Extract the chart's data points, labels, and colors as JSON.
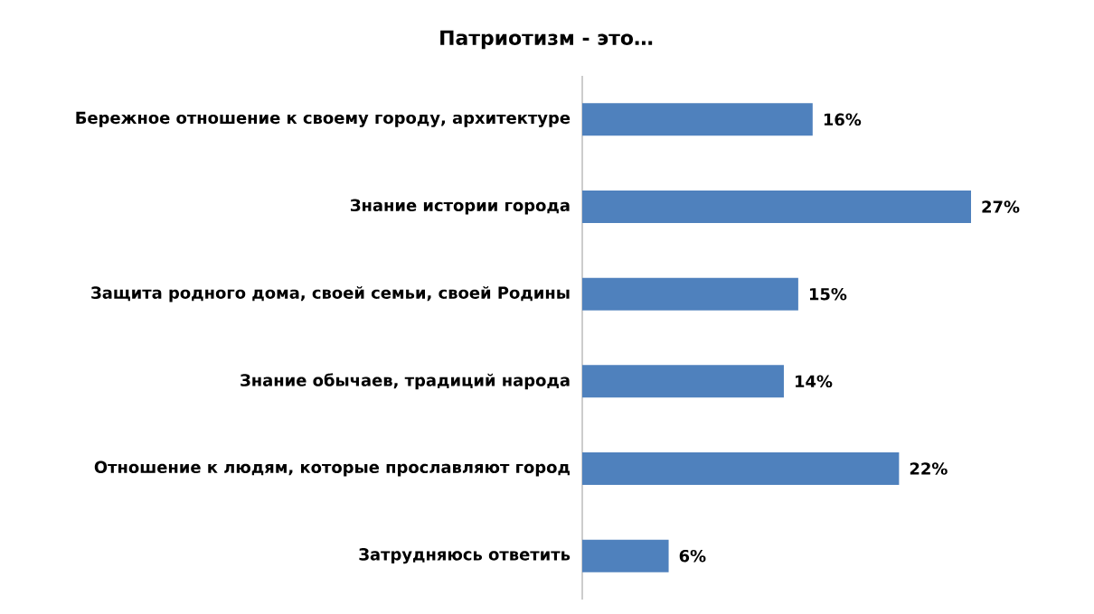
{
  "chart_data": {
    "type": "bar",
    "orientation": "horizontal",
    "title": "Патриотизм - это…",
    "categories": [
      "Бережное отношение к своему городу, архитектуре",
      "Знание истории города",
      "Защита  родного дома, своей семьи, своей Родины",
      "Знание обычаев, традиций народа",
      "Отношение к людям, которые прославляют город",
      "Затрудняюсь ответить"
    ],
    "values": [
      16,
      27,
      15,
      14,
      22,
      6
    ],
    "value_labels": [
      "16%",
      "27%",
      "15%",
      "14%",
      "22%",
      "6%"
    ],
    "color": "#4f81bd"
  }
}
